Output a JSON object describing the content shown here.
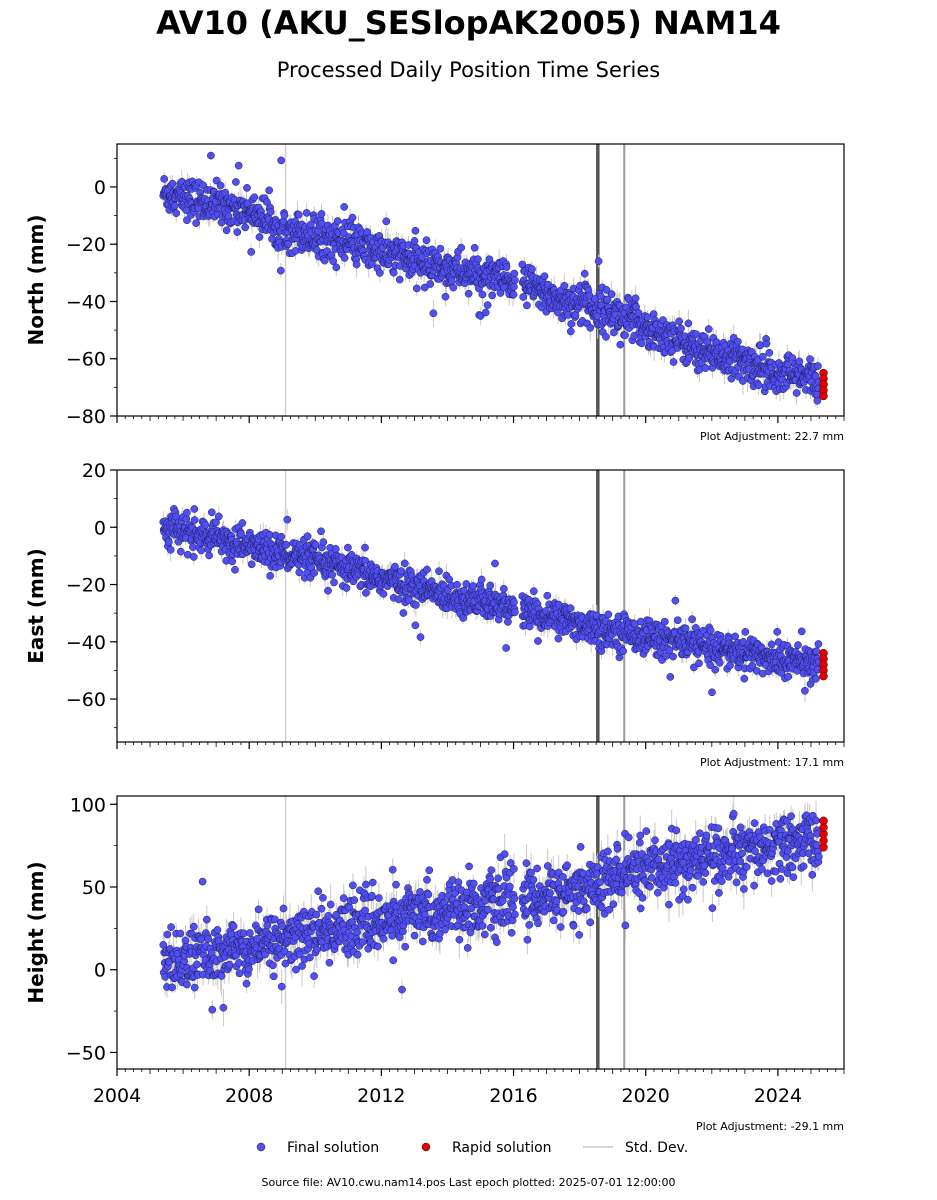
{
  "title": "AV10 (AKU_SESlopAK2005) NAM14",
  "subtitle": "Processed Daily Position Time Series",
  "footer": "Source file: AV10.cwu.nam14.pos  Last epoch plotted: 2025-07-01 12:00:00",
  "colors": {
    "final": "#4f4ff2",
    "rapid": "#e00000",
    "stddev": "#c8c8c8",
    "event_dark": "#555555",
    "event_light": "#9a9a9a"
  },
  "legend": {
    "final_label": "Final solution",
    "rapid_label": "Rapid solution",
    "stddev_label": "Std. Dev."
  },
  "chart_data": [
    {
      "type": "scatter",
      "ylabel": "North (mm)",
      "xlim": [
        2004,
        2026
      ],
      "ylim": [
        -80,
        15
      ],
      "yticks": [
        0,
        -20,
        -40,
        -60,
        -80
      ],
      "adjustment": "Plot Adjustment: 22.7 mm",
      "trend": {
        "x": [
          2005.4,
          2006.5,
          2008.0,
          2009.0,
          2011.0,
          2013.0,
          2015.0,
          2016.5,
          2017.5,
          2018.5,
          2019.5,
          2020.5,
          2022.0,
          2023.5,
          2025.3
        ],
        "y": [
          -2,
          -5,
          -8,
          -14,
          -20,
          -26,
          -31,
          -35,
          -40,
          -42,
          -46,
          -52,
          -58,
          -63,
          -68
        ]
      },
      "noise_sd": 3.5,
      "rapid_y": [
        -65,
        -67,
        -69,
        -71,
        -73
      ],
      "vlines_light": [
        2009.1
      ],
      "vlines_dark": [
        2018.55
      ],
      "vlines_mid": [
        2019.35
      ]
    },
    {
      "type": "scatter",
      "ylabel": "East (mm)",
      "xlim": [
        2004,
        2026
      ],
      "ylim": [
        -75,
        20
      ],
      "yticks": [
        20,
        0,
        -20,
        -40,
        -60
      ],
      "adjustment": "Plot Adjustment: 17.1 mm",
      "trend": {
        "x": [
          2005.4,
          2007.0,
          2009.0,
          2011.0,
          2013.0,
          2015.0,
          2017.0,
          2018.5,
          2020.0,
          2022.0,
          2024.0,
          2025.3
        ],
        "y": [
          0,
          -4,
          -9,
          -15,
          -21,
          -26,
          -31,
          -35,
          -38,
          -42,
          -46,
          -48
        ]
      },
      "noise_sd": 3.0,
      "rapid_y": [
        -44,
        -46,
        -48,
        -50,
        -52
      ],
      "vlines_light": [
        2009.1
      ],
      "vlines_dark": [
        2018.55
      ],
      "vlines_mid": [
        2019.35
      ]
    },
    {
      "type": "scatter",
      "ylabel": "Height (mm)",
      "xlim": [
        2004,
        2026
      ],
      "ylim": [
        -60,
        105
      ],
      "yticks": [
        100,
        50,
        0,
        -50
      ],
      "xticks": [
        2004,
        2008,
        2012,
        2016,
        2020,
        2024
      ],
      "adjustment": "Plot Adjustment: -29.1 mm",
      "trend": {
        "x": [
          2005.4,
          2007.0,
          2009.0,
          2011.0,
          2013.0,
          2015.0,
          2017.0,
          2018.5,
          2020.0,
          2022.0,
          2024.0,
          2025.3
        ],
        "y": [
          4,
          9,
          18,
          26,
          33,
          39,
          45,
          51,
          61,
          68,
          73,
          79
        ]
      },
      "noise_sd": 9.0,
      "rapid_y": [
        74,
        78,
        82,
        86,
        90
      ],
      "vlines_light": [
        2009.1
      ],
      "vlines_dark": [
        2018.55
      ],
      "vlines_mid": [
        2019.35
      ]
    }
  ]
}
